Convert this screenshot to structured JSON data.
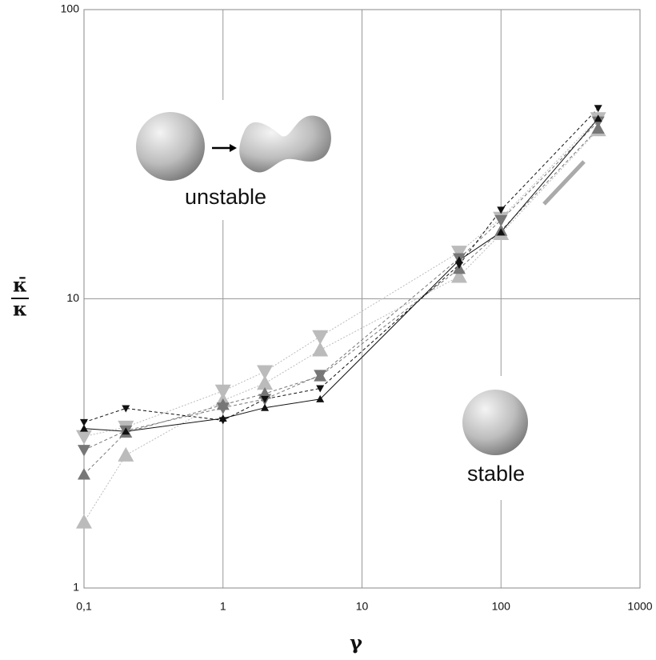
{
  "chart_data": {
    "type": "line",
    "xlabel": "γ",
    "ylabel": {
      "numerator": "κ̄",
      "denominator": "κ"
    },
    "annotations": [
      "unstable",
      "stable"
    ],
    "xscale": "log",
    "yscale": "log",
    "grid": true,
    "xlim": [
      0.1,
      1000
    ],
    "ylim": [
      1,
      100
    ],
    "xticks": [
      {
        "value": 0.1,
        "label": "0,1"
      },
      1,
      10,
      100,
      1000
    ],
    "yticks": [
      1,
      10,
      100
    ],
    "x": [
      0.1,
      0.2,
      1,
      2,
      5,
      50,
      100,
      500
    ],
    "series": [
      {
        "color": "#bbbbbb",
        "marker": "triangle-up",
        "linestyle": "dotted",
        "values": [
          1.69,
          2.88,
          4.45,
          5.1,
          6.65,
          11.95,
          16.8,
          38.4
        ]
      },
      {
        "color": "#bbbbbb",
        "marker": "triangle-down",
        "linestyle": "dotted",
        "values": [
          3.34,
          3.6,
          4.8,
          5.6,
          7.4,
          14.5,
          19,
          42
        ]
      },
      {
        "color": "#777777",
        "marker": "triangle-up",
        "linestyle": "dashed",
        "values": [
          2.47,
          3.45,
          4.3,
          4.7,
          5.4,
          12.7,
          17.2,
          38.8
        ]
      },
      {
        "color": "#777777",
        "marker": "triangle-down",
        "linestyle": "dashed",
        "values": [
          3.0,
          3.5,
          4.2,
          4.5,
          5.45,
          13.8,
          18.7,
          41
        ]
      },
      {
        "color": "#111111",
        "marker": "triangle-down",
        "linestyle": "dashed",
        "values": [
          3.74,
          4.18,
          3.8,
          4.5,
          4.9,
          13.1,
          20.3,
          45.6
        ]
      },
      {
        "color": "#111111",
        "marker": "triangle-up",
        "linestyle": "solid",
        "values": [
          3.56,
          3.48,
          3.86,
          4.2,
          4.5,
          13.6,
          17,
          42
        ]
      }
    ]
  }
}
